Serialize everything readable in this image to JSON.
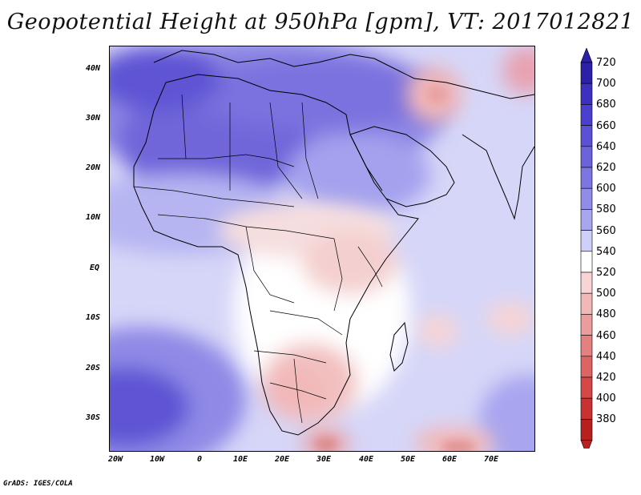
{
  "title": "Geopotential Height at 950hPa [gpm], VT: 2017012821",
  "footer": "GrADS: IGES/COLA",
  "map": {
    "type": "filled-contour",
    "variable": "Geopotential Height",
    "level": "950hPa",
    "units": "gpm",
    "valid_time": "2017012821"
  },
  "axes": {
    "y_labels": [
      "40N",
      "30N",
      "20N",
      "10N",
      "EQ",
      "10S",
      "20S",
      "30S"
    ],
    "x_labels": [
      "20W",
      "10W",
      "0",
      "10E",
      "20E",
      "30E",
      "40E",
      "50E",
      "60E",
      "70E"
    ]
  },
  "colorbar": {
    "levels": [
      "720",
      "700",
      "680",
      "660",
      "640",
      "620",
      "600",
      "580",
      "560",
      "540",
      "520",
      "500",
      "480",
      "460",
      "440",
      "420",
      "400",
      "380"
    ],
    "colors": [
      "#2b20a8",
      "#3d30c0",
      "#4a3fce",
      "#5a51d6",
      "#6b62dc",
      "#7d76e2",
      "#908ce8",
      "#a8a6ef",
      "#cfd0f8",
      "#ffffff",
      "#f8d4d4",
      "#f2b8b8",
      "#ec9c9c",
      "#e58080",
      "#de6464",
      "#d44848",
      "#c83232",
      "#b82020"
    ]
  }
}
